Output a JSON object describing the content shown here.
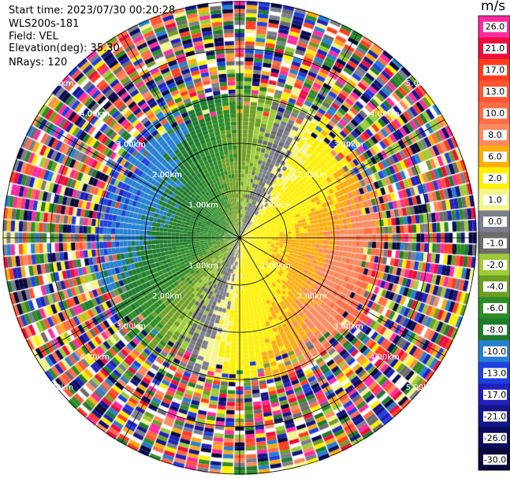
{
  "header": {
    "start_time": "Start time: 2023/07/30 00:20:28",
    "instrument": "WLS200s-181",
    "field": "Field: VEL",
    "elevation": "Elevation(deg): 35.30",
    "nrays": "NRays: 120"
  },
  "chart_data": {
    "type": "heatmap",
    "projection": "polar PPI",
    "field": "VEL",
    "units": "m/s",
    "nrays": 120,
    "range_rings_km": [
      1.0,
      2.0,
      3.0,
      4.0,
      5.0
    ],
    "ring_labels": [
      "1.00km",
      "2.00km",
      "3.00km",
      "4.00km",
      "5.00km"
    ],
    "spokes_deg": [
      0,
      30,
      60,
      90,
      120,
      150,
      180,
      210,
      240,
      270,
      300,
      330
    ],
    "colorbar": {
      "label": "m/s",
      "ticks": [
        "26.0",
        "21.0",
        "17.0",
        "13.0",
        "10.0",
        "8.0",
        "6.0",
        "2.0",
        "1.0",
        "0.0",
        "-1.0",
        "-2.0",
        "-4.0",
        "-6.0",
        "-8.0",
        "-10.0",
        "-13.0",
        "-17.0",
        "-21.0",
        "-26.0",
        "-30.0"
      ],
      "colors": [
        "#fe2aa0",
        "#ee0d3d",
        "#ff3d1e",
        "#ff5533",
        "#ff6c46",
        "#fb8a5e",
        "#fbad0d",
        "#fff000",
        "#f3f58d",
        "#7c7e8e",
        "#6c6c6c",
        "#9ccc38",
        "#6e9f24",
        "#2d8c26",
        "#1e7b2c",
        "#2680d0",
        "#1f3fe0",
        "#2121bb",
        "#15158a",
        "#0b0b5d",
        "#07073a"
      ]
    }
  }
}
